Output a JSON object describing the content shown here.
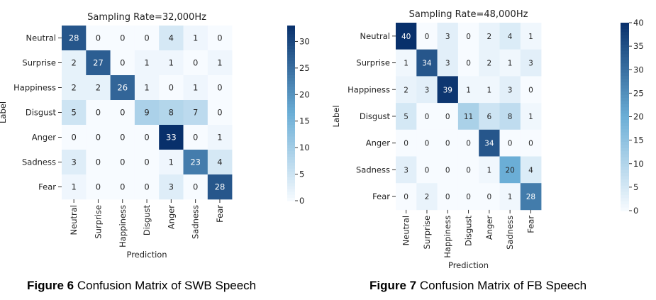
{
  "captions": [
    {
      "figure": "Figure 6",
      "text": "Confusion Matrix of SWB Speech"
    },
    {
      "figure": "Figure 7",
      "text": "Confusion Matrix of FB Speech"
    }
  ],
  "colors": {
    "low": "#f7fbff",
    "mid": "#6baed6",
    "high": "#08306b"
  },
  "chart_data": [
    {
      "type": "heatmap",
      "title": "Sampling Rate=32,000Hz",
      "xlabel": "Prediction",
      "ylabel": "Label",
      "rows": [
        "Neutral",
        "Surprise",
        "Happiness",
        "Disgust",
        "Anger",
        "Sadness",
        "Fear"
      ],
      "cols": [
        "Neutral",
        "Surprise",
        "Happiness",
        "Disgust",
        "Anger",
        "Sadness",
        "Fear"
      ],
      "values": [
        [
          28,
          0,
          0,
          0,
          4,
          1,
          0
        ],
        [
          2,
          27,
          0,
          1,
          1,
          0,
          1
        ],
        [
          2,
          2,
          26,
          1,
          0,
          1,
          0
        ],
        [
          5,
          0,
          0,
          9,
          8,
          7,
          0
        ],
        [
          0,
          0,
          0,
          0,
          33,
          0,
          1
        ],
        [
          3,
          0,
          0,
          0,
          1,
          23,
          4
        ],
        [
          1,
          0,
          0,
          0,
          3,
          0,
          28
        ]
      ],
      "colorbar": {
        "min": 0,
        "max": 33,
        "ticks": [
          0,
          5,
          10,
          15,
          20,
          25,
          30
        ]
      }
    },
    {
      "type": "heatmap",
      "title": "Sampling Rate=48,000Hz",
      "xlabel": "Prediction",
      "ylabel": "Label",
      "rows": [
        "Neutral",
        "Surprise",
        "Happiness",
        "Disgust",
        "Anger",
        "Sadness",
        "Fear"
      ],
      "cols": [
        "Neutral",
        "Surprise",
        "Happiness",
        "Disgust",
        "Anger",
        "Sadness",
        "Fear"
      ],
      "values": [
        [
          40,
          0,
          3,
          0,
          2,
          4,
          1
        ],
        [
          1,
          34,
          3,
          0,
          2,
          1,
          3
        ],
        [
          2,
          3,
          39,
          1,
          1,
          3,
          0
        ],
        [
          5,
          0,
          0,
          11,
          6,
          8,
          1
        ],
        [
          0,
          0,
          0,
          0,
          34,
          0,
          0
        ],
        [
          3,
          0,
          0,
          0,
          1,
          20,
          4
        ],
        [
          0,
          2,
          0,
          0,
          0,
          1,
          28
        ]
      ],
      "colorbar": {
        "min": 0,
        "max": 40,
        "ticks": [
          0,
          5,
          10,
          15,
          20,
          25,
          30,
          35,
          40
        ]
      }
    }
  ]
}
